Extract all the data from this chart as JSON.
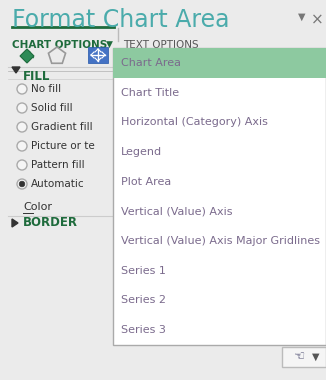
{
  "title": "Format Chart Area",
  "title_color": "#4AABAB",
  "bg_color": "#EBEBEB",
  "header_text1": "CHART OPTIONS",
  "header_text2": "TEXT OPTIONS",
  "header_color": "#1E6B3C",
  "tab_underline_color": "#1E6B3C",
  "dropdown_items": [
    "Chart Area",
    "Chart Title",
    "Horizontal (Category) Axis",
    "Legend",
    "Plot Area",
    "Vertical (Value) Axis",
    "Vertical (Value) Axis Major Gridlines",
    "Series 1",
    "Series 2",
    "Series 3"
  ],
  "dropdown_selected_color": "#8DC9A0",
  "dropdown_text_color": "#7B6B8D",
  "dropdown_bg": "#FFFFFF",
  "dropdown_border": "#AAAAAA",
  "fill_section": "FILL",
  "fill_color": "#1E6B3C",
  "radio_items": [
    "No fill",
    "Solid fill",
    "Gradient fill",
    "Picture or te",
    "Pattern fill",
    "Automatic"
  ],
  "radio_selected": 5,
  "color_label": "Color",
  "border_section": "BORDER",
  "separator_color": "#CCCCCC",
  "text_dark": "#333333",
  "text_gray": "#666666",
  "nav_btn_bg": "#F5F5F5",
  "nav_btn_border": "#BBBBBB"
}
